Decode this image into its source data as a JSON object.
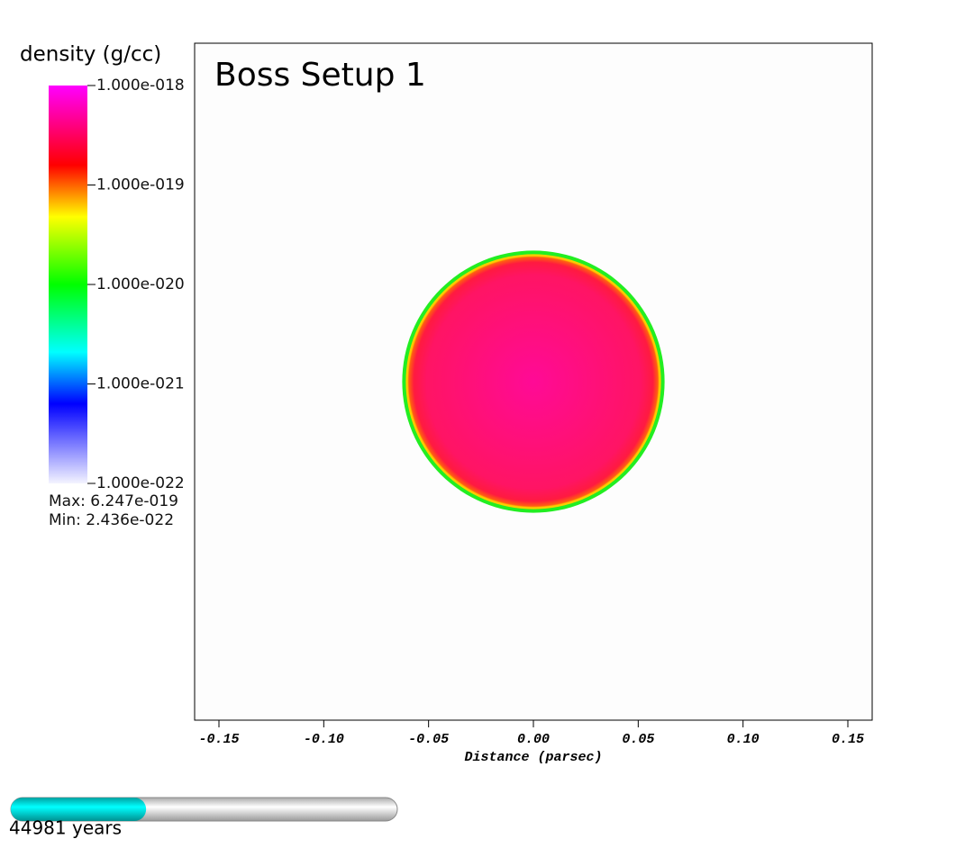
{
  "chart_data": {
    "type": "pseudocolor",
    "title": "Boss Setup 1",
    "xlabel": "Distance (parsec)",
    "xlim": [
      -0.1616,
      0.1616
    ],
    "xticks": [
      {
        "value": -0.15,
        "label": "-0.15"
      },
      {
        "value": -0.1,
        "label": "-0.10"
      },
      {
        "value": -0.05,
        "label": "-0.05"
      },
      {
        "value": 0,
        "label": "0.00"
      },
      {
        "value": 0.05,
        "label": "0.05"
      },
      {
        "value": 0.1,
        "label": "0.10"
      },
      {
        "value": 0.15,
        "label": "0.15"
      }
    ],
    "disk": {
      "center_x": 0,
      "radius": 0.06
    },
    "colorbar": {
      "title": "density (g/cc)",
      "log": true,
      "lim": [
        1e-22,
        1e-18
      ],
      "ticks": [
        {
          "value": 1e-18,
          "label": "1.000e-018"
        },
        {
          "value": 1e-19,
          "label": "1.000e-019"
        },
        {
          "value": 1e-20,
          "label": "1.000e-020"
        },
        {
          "value": 1e-21,
          "label": "1.000e-021"
        },
        {
          "value": 1e-22,
          "label": "1.000e-022"
        }
      ],
      "max_label": "Max:  6.247e-019",
      "min_label": "Min:  2.436e-022"
    },
    "time": {
      "label": "44981 years",
      "progress": 0.35
    }
  }
}
